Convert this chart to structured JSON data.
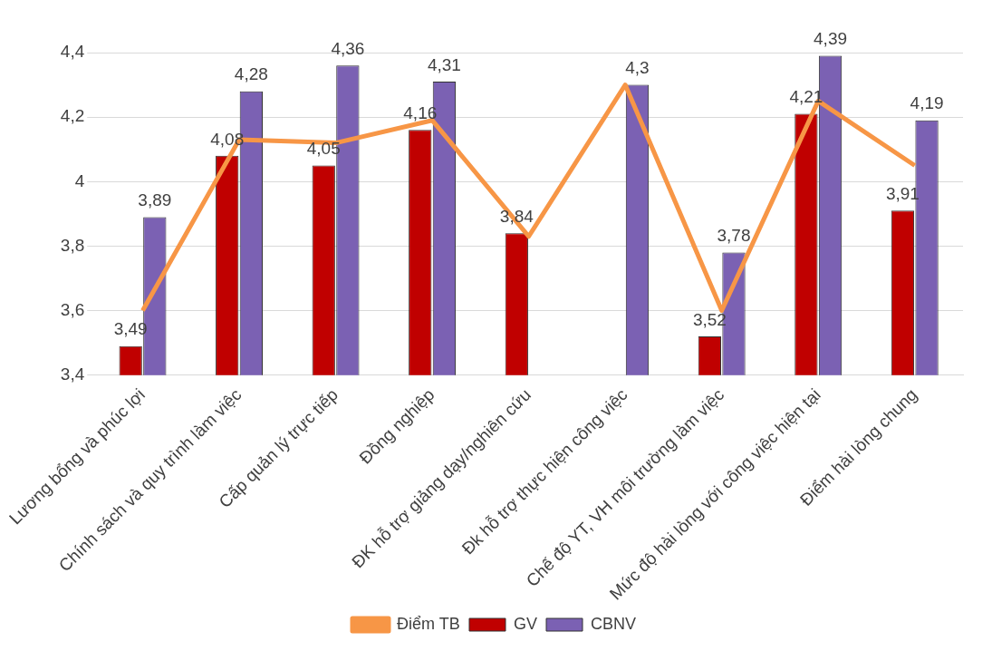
{
  "chart_data": {
    "type": "bar",
    "categories": [
      "Lương bổng và phúc lợi",
      "Chính sách và quy trình làm việc",
      "Cấp quản lý trực tiếp",
      "Đồng nghiệp",
      "ĐK hỗ trợ giảng dạy/nghiên cứu",
      "Đk hỗ trợ thực hiện công việc",
      "Chế độ YT, VH môi trường làm việc",
      "Mức độ hài lòng với công việc hiện tại",
      "Điểm hài lòng chung"
    ],
    "series": [
      {
        "name": "GV",
        "color": "#c00000",
        "values": [
          3.49,
          4.08,
          4.05,
          4.16,
          3.84,
          null,
          3.52,
          4.21,
          3.91
        ],
        "value_labels": [
          "3,49",
          "4,08",
          "4,05",
          "4,16",
          "3,84",
          null,
          "3,52",
          "4,21",
          "3,91"
        ]
      },
      {
        "name": "CBNV",
        "color": "#7b61b3",
        "values": [
          3.89,
          4.28,
          4.36,
          4.31,
          null,
          4.3,
          3.78,
          4.39,
          4.19
        ],
        "value_labels": [
          "3,89",
          "4,28",
          "4,36",
          "4,31",
          null,
          "4,3",
          "3,78",
          "4,39",
          "4,19"
        ]
      },
      {
        "name": "Điểm TB",
        "type": "line",
        "color": "#f79646",
        "values": [
          3.6,
          4.13,
          4.12,
          4.19,
          3.83,
          4.3,
          3.6,
          4.25,
          4.05
        ]
      }
    ],
    "ylim": [
      3.4,
      4.4
    ],
    "yticks": [
      {
        "value": 3.4,
        "label": "3,4"
      },
      {
        "value": 3.6,
        "label": "3,6"
      },
      {
        "value": 3.8,
        "label": "3,8"
      },
      {
        "value": 4,
        "label": "4"
      },
      {
        "value": 4.2,
        "label": "4,2"
      },
      {
        "value": 4.4,
        "label": "4,4"
      }
    ],
    "grid": "y",
    "legend": "bottom",
    "marker": "none"
  }
}
